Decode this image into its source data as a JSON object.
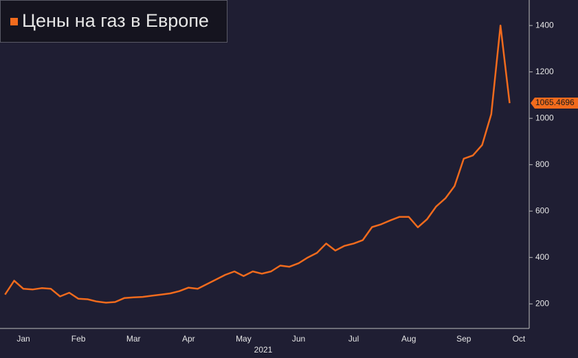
{
  "chart_data": {
    "type": "line",
    "title": "Цены на газ в Европе",
    "x_label": "2021",
    "categories": [
      null,
      null,
      "Jan",
      null,
      null,
      null,
      null,
      null,
      "Feb",
      null,
      null,
      null,
      null,
      null,
      "Mar",
      null,
      null,
      null,
      null,
      null,
      "Apr",
      null,
      null,
      null,
      null,
      null,
      "May",
      null,
      null,
      null,
      null,
      null,
      "Jun",
      null,
      null,
      null,
      null,
      null,
      "Jul",
      null,
      null,
      null,
      null,
      null,
      "Aug",
      null,
      null,
      null,
      null,
      null,
      "Sep",
      null,
      null,
      null,
      null,
      null,
      "Oct"
    ],
    "series": [
      {
        "color": "#f26b1d",
        "values": [
          240,
          300,
          265,
          262,
          268,
          265,
          232,
          248,
          222,
          220,
          210,
          205,
          208,
          225,
          228,
          230,
          235,
          240,
          245,
          255,
          270,
          265,
          285,
          305,
          325,
          340,
          320,
          340,
          330,
          340,
          365,
          360,
          375,
          400,
          420,
          460,
          430,
          450,
          460,
          475,
          531,
          543,
          560,
          575,
          575,
          530,
          565,
          620,
          655,
          708,
          826,
          840,
          885,
          1018,
          1400,
          1065.4696,
          null
        ]
      }
    ],
    "ylim": [
      94,
      1510
    ],
    "yticks": [
      200,
      400,
      600,
      800,
      1000,
      1200,
      1400
    ]
  }
}
